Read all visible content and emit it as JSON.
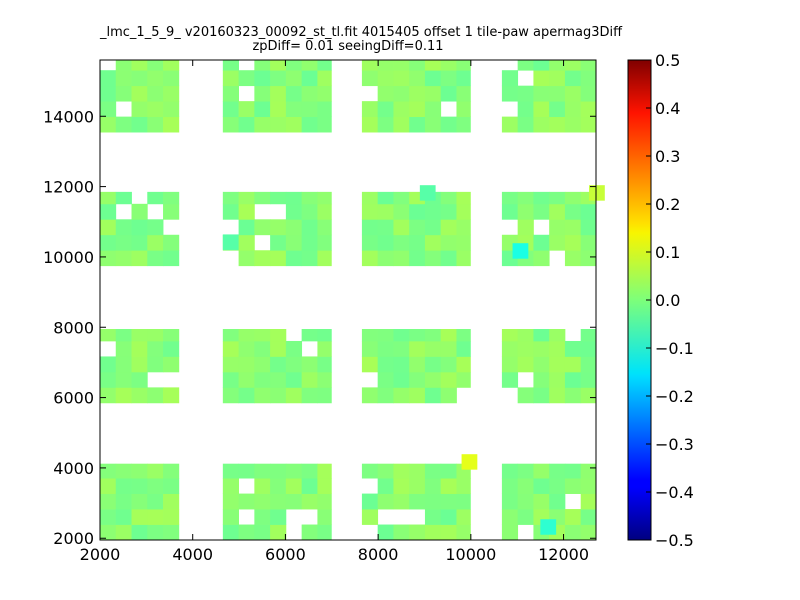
{
  "chart_data": {
    "type": "heatmap",
    "title": "_lmc_1_5_9_ v20160323_00092_st_tl.fit 4015405 offset 1 tile-paw apermag3Diff",
    "subtitle": "zpDiff= 0.01 seeingDiff=0.11",
    "xlabel": "",
    "ylabel": "",
    "xlim": [
      2000,
      12700
    ],
    "ylim": [
      1950,
      15600
    ],
    "x_ticks": [
      "2000",
      "4000",
      "6000",
      "8000",
      "10000",
      "12000"
    ],
    "y_ticks": [
      "2000",
      "4000",
      "6000",
      "8000",
      "10000",
      "12000",
      "14000"
    ],
    "colorbar": {
      "colormap": "jet",
      "range": [
        -0.5,
        0.5
      ],
      "ticks": [
        "0.5",
        "0.4",
        "0.3",
        "0.2",
        "0.1",
        "0.0",
        "−0.1",
        "−0.2",
        "−0.3",
        "−0.4",
        "−0.5"
      ]
    },
    "cell_size": [
      340,
      440
    ],
    "x_start": 2000,
    "y_start": 1950,
    "blocks": [
      {
        "x": [
          2000,
          3700
        ],
        "y": [
          3650,
          15600
        ],
        "bands": [
          [
            1950,
            4120
          ],
          [
            5850,
            7950
          ],
          [
            9750,
            11850
          ],
          [
            13550,
            15600
          ]
        ]
      },
      {
        "x": [
          4650,
          6990
        ],
        "y": [
          3650,
          15600
        ],
        "bands": [
          [
            1950,
            4120
          ],
          [
            5850,
            7950
          ],
          [
            9750,
            11850
          ],
          [
            13550,
            15600
          ]
        ]
      },
      {
        "x": [
          7650,
          9990
        ],
        "y": [
          3650,
          15600
        ],
        "bands": [
          [
            1950,
            4120
          ],
          [
            5850,
            7950
          ],
          [
            9750,
            11850
          ],
          [
            13550,
            15600
          ]
        ]
      },
      {
        "x": [
          10670,
          12700
        ],
        "y": [
          3650,
          15600
        ],
        "bands": [
          [
            1950,
            4120
          ],
          [
            5850,
            7950
          ],
          [
            9750,
            11850
          ],
          [
            13550,
            15600
          ]
        ]
      }
    ],
    "mean_value": 0.01,
    "value_spread": 0.03,
    "outliers": [
      {
        "x": 9800,
        "y": 3950,
        "value": 0.1
      },
      {
        "x": 12550,
        "y": 11600,
        "value": 0.07
      },
      {
        "x": 10900,
        "y": 9950,
        "value": -0.1
      },
      {
        "x": 11500,
        "y": 2100,
        "value": -0.08
      },
      {
        "x": 4650,
        "y": 10200,
        "value": -0.04
      },
      {
        "x": 8900,
        "y": 11600,
        "value": -0.04
      }
    ]
  }
}
